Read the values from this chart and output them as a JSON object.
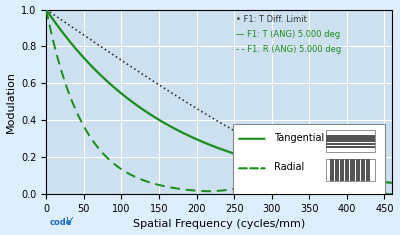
{
  "title": "",
  "xlabel": "Spatial Frequency (cycles/mm)",
  "ylabel": "Modulation",
  "xlim": [
    0,
    460
  ],
  "ylim": [
    0,
    1.0
  ],
  "xticks": [
    0,
    50,
    100,
    150,
    200,
    250,
    300,
    350,
    400,
    450
  ],
  "yticks": [
    0.0,
    0.2,
    0.4,
    0.6,
    0.8,
    1.0
  ],
  "background_color": "#ddeeff",
  "plot_bg_color": "#cce0ef",
  "grid_color": "#ffffff",
  "diffraction_color": "#333333",
  "tangential_color": "#1a8c1a",
  "radial_color": "#1a8c1a",
  "legend1_items": [
    "F1: T Diff. Limit",
    "F1: T (ANG) 5.000 deg",
    "F1: R (ANG) 5.000 deg"
  ],
  "legend2_tangential": "Tangential",
  "legend2_radial": "Radial",
  "font_size_axis": 8,
  "font_size_legend": 7
}
